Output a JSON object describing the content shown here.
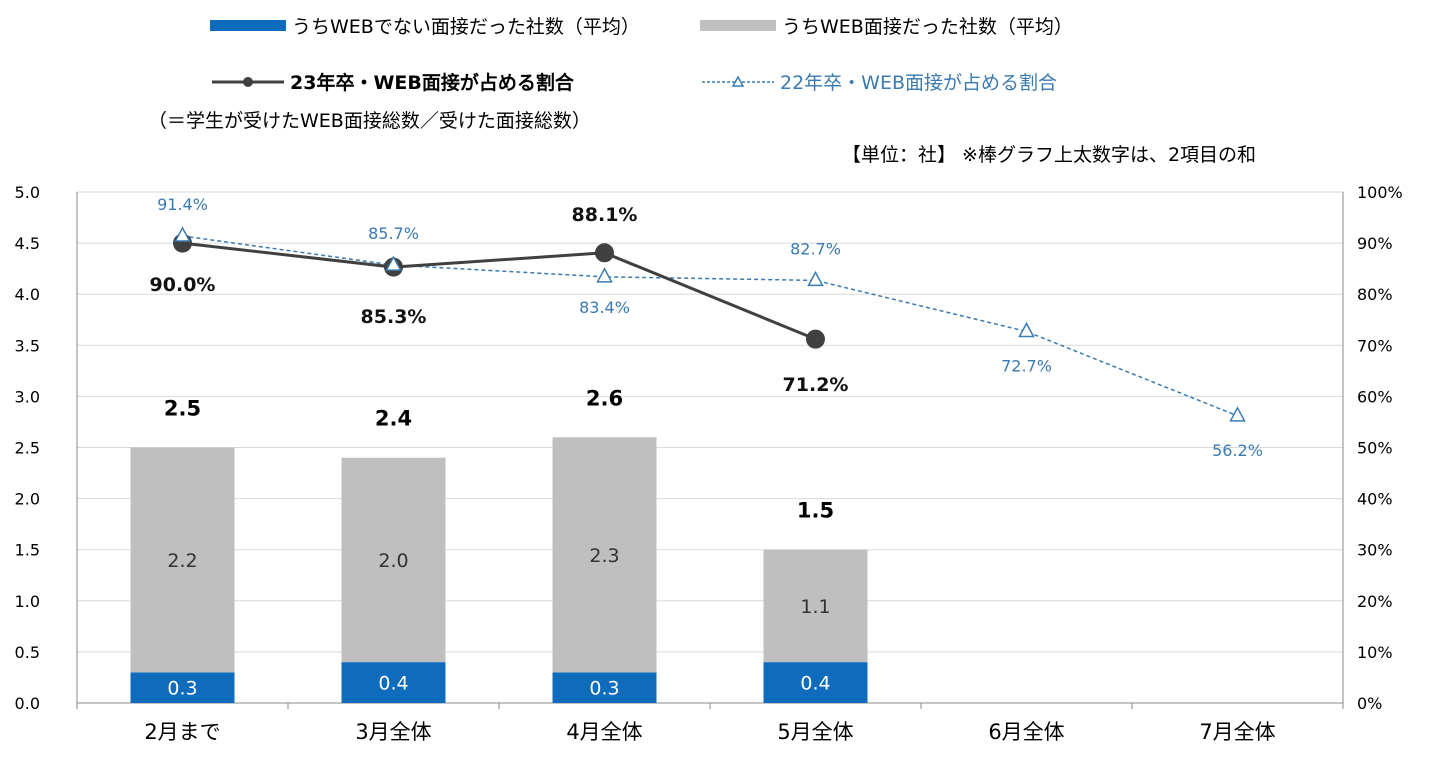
{
  "legend": {
    "non_web": "うちWEBでない面接だった社数（平均）",
    "web": "うちWEB面接だった社数（平均）",
    "line23": "23年卒・WEB面接が占める割合",
    "line22": "22年卒・WEB面接が占める割合",
    "line23_note": "（＝学生が受けたWEB面接総数／受けた面接総数）"
  },
  "unit_note": "【単位：社】 ※棒グラフ上太数字は、2項目の和",
  "colors": {
    "non_web": "#0f6cbd",
    "web": "#bfbfbf",
    "line23": "#404040",
    "line22": "#3a7ab0"
  },
  "chart_data": {
    "type": "bar",
    "categories": [
      "2月まで",
      "3月全体",
      "4月全体",
      "5月全体",
      "6月全体",
      "7月全体"
    ],
    "bar_series": [
      {
        "name": "うちWEBでない面接だった社数（平均）",
        "values": [
          0.3,
          0.4,
          0.3,
          0.4,
          null,
          null
        ],
        "labels": [
          "0.3",
          "0.4",
          "0.3",
          "0.4",
          "",
          ""
        ]
      },
      {
        "name": "うちWEB面接だった社数（平均）",
        "values": [
          2.2,
          2.0,
          2.3,
          1.1,
          null,
          null
        ],
        "labels": [
          "2.2",
          "2.0",
          "2.3",
          "1.1",
          "",
          ""
        ]
      }
    ],
    "bar_totals": [
      2.5,
      2.4,
      2.6,
      1.5,
      null,
      null
    ],
    "bar_total_labels": [
      "2.5",
      "2.4",
      "2.6",
      "1.5",
      "",
      ""
    ],
    "line_series": [
      {
        "name": "23年卒・WEB面接が占める割合",
        "values": [
          90.0,
          85.3,
          88.1,
          71.2,
          null,
          null
        ],
        "labels": [
          "90.0%",
          "85.3%",
          "88.1%",
          "71.2%",
          "",
          ""
        ]
      },
      {
        "name": "22年卒・WEB面接が占める割合",
        "values": [
          91.4,
          85.7,
          83.4,
          82.7,
          72.7,
          56.2
        ],
        "labels": [
          "91.4%",
          "85.7%",
          "83.4%",
          "82.7%",
          "72.7%",
          "56.2%"
        ]
      }
    ],
    "y_left": {
      "min": 0,
      "max": 5,
      "ticks": [
        "0.0",
        "0.5",
        "1.0",
        "1.5",
        "2.0",
        "2.5",
        "3.0",
        "3.5",
        "4.0",
        "4.5",
        "5.0"
      ]
    },
    "y_right": {
      "min": 0,
      "max": 100,
      "ticks": [
        "0%",
        "10%",
        "20%",
        "30%",
        "40%",
        "50%",
        "60%",
        "70%",
        "80%",
        "90%",
        "100%"
      ]
    },
    "grid": true,
    "legend_position": "top"
  }
}
